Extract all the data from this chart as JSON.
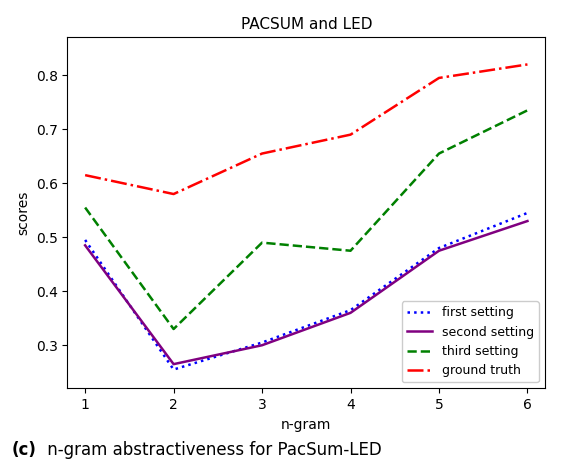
{
  "title": "PACSUM and LED",
  "xlabel": "n-gram",
  "ylabel": "scores",
  "caption_bold": "(c)",
  "caption_normal": " n-gram abstractiveness for PacSum-LED",
  "x": [
    1,
    2,
    3,
    4,
    5,
    6
  ],
  "first_setting": [
    0.495,
    0.255,
    0.305,
    0.365,
    0.48,
    0.545
  ],
  "second_setting": [
    0.485,
    0.265,
    0.3,
    0.36,
    0.475,
    0.53
  ],
  "third_setting": [
    0.555,
    0.33,
    0.49,
    0.475,
    0.655,
    0.735
  ],
  "ground_truth": [
    0.615,
    0.58,
    0.655,
    0.69,
    0.795,
    0.82
  ],
  "first_color": "#0000ff",
  "second_color": "#800080",
  "third_color": "#008000",
  "ground_color": "#ff0000",
  "ylim": [
    0.22,
    0.87
  ],
  "xlim": [
    0.8,
    6.2
  ],
  "figsize": [
    5.62,
    4.68
  ],
  "dpi": 100
}
